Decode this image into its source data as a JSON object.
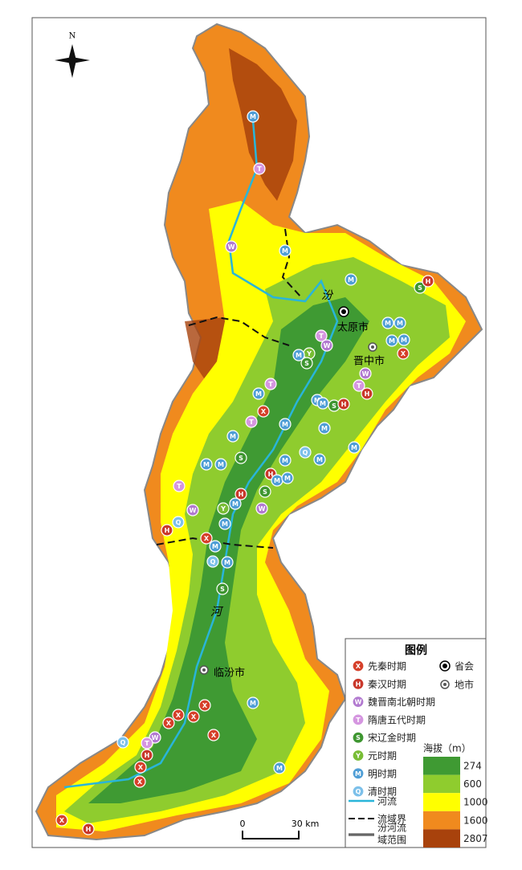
{
  "map": {
    "north": "N",
    "places": [
      {
        "name": "太原市",
        "kind": "capital"
      },
      {
        "name": "晋中市",
        "kind": "city"
      },
      {
        "name": "临汾市",
        "kind": "city"
      }
    ],
    "river_labels": [
      "汾",
      "河"
    ],
    "scale_bar": {
      "start_label": "0",
      "end_label": "30 km"
    },
    "legend": {
      "title": "图例",
      "periods": [
        {
          "symbol": "X",
          "label": "先秦时期",
          "color": "#d6402a"
        },
        {
          "symbol": "H",
          "label": "秦汉时期",
          "color": "#c9372a"
        },
        {
          "symbol": "W",
          "label": "魏晋南北朝时期",
          "color": "#b27ad0"
        },
        {
          "symbol": "T",
          "label": "隋唐五代时期",
          "color": "#d596e0"
        },
        {
          "symbol": "S",
          "label": "宋辽金时期",
          "color": "#3e9630"
        },
        {
          "symbol": "Y",
          "label": "元时期",
          "color": "#78bd35"
        },
        {
          "symbol": "M",
          "label": "明时期",
          "color": "#4f9ed6"
        },
        {
          "symbol": "Q",
          "label": "清时期",
          "color": "#7cc0ea"
        }
      ],
      "capital": "省会",
      "city": "地市",
      "elevation": {
        "title": "海拔（m）",
        "breaks": [
          274,
          600,
          1000,
          1600,
          2807
        ],
        "colors": [
          "#3f9a33",
          "#8fcc2e",
          "#ffff00",
          "#f08a1e",
          "#a8420c"
        ]
      },
      "lines": [
        {
          "label": "河流"
        },
        {
          "label": "流域界"
        },
        {
          "label_lines": [
            "汾河流",
            "域范围"
          ]
        }
      ]
    },
    "sites": [
      "M",
      "T",
      "W",
      "M",
      "M",
      "S",
      "H",
      "M",
      "M",
      "M",
      "M",
      "T",
      "W",
      "X",
      "Y",
      "M",
      "S",
      "W",
      "T",
      "H",
      "T",
      "M",
      "X",
      "T",
      "M",
      "M",
      "S",
      "H",
      "M",
      "M",
      "M",
      "M",
      "Q",
      "M",
      "M",
      "M",
      "S",
      "M",
      "H",
      "M",
      "M",
      "T",
      "S",
      "H",
      "Y",
      "M",
      "W",
      "W",
      "Q",
      "H",
      "X",
      "M",
      "M",
      "Q",
      "M",
      "S",
      "M",
      "X",
      "X",
      "X",
      "X",
      "W",
      "Q",
      "T",
      "H",
      "X",
      "X",
      "X",
      "M",
      "X",
      "H"
    ]
  }
}
